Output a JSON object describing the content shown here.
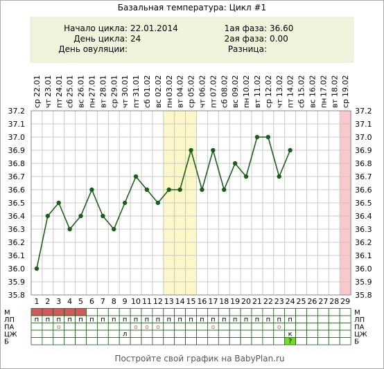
{
  "title": "Базальная температура: Цикл #1",
  "info": {
    "start_label": "Начало цикла:",
    "start_value": "22.01.2014",
    "day_label": "День цикла:",
    "day_value": "24",
    "ovulation_label": "День овуляции:",
    "ovulation_value": "",
    "phase1_label": "1ая фаза:",
    "phase1_value": "36.60",
    "phase2_label": "2ая фаза:",
    "phase2_value": "0.00",
    "diff_label": "Разница:",
    "diff_value": ""
  },
  "footer": "Постройте свой график на BabyPlan.ru",
  "colors": {
    "line": "#1b5e1b",
    "point": "#1b5e1b",
    "info_bg": "#eef5dc",
    "highlight": "#fbf7c8",
    "today": "#f9c8cc",
    "m_bar": "#d05b5b",
    "circle": "#e06060",
    "b_cell": "#77dd22"
  },
  "chart_data": {
    "type": "line",
    "title": "Базальная температура: Цикл #1",
    "days": [
      1,
      2,
      3,
      4,
      5,
      6,
      7,
      8,
      9,
      10,
      11,
      12,
      13,
      14,
      15,
      16,
      17,
      18,
      19,
      20,
      21,
      22,
      23,
      24,
      25,
      26,
      27,
      28,
      29
    ],
    "dates": [
      "22.01",
      "23.01",
      "24.01",
      "25.01",
      "26.01",
      "27.01",
      "28.01",
      "29.01",
      "30.01",
      "31.01",
      "01.02",
      "02.02",
      "03.02",
      "04.02",
      "05.02",
      "06.02",
      "07.02",
      "08.02",
      "09.02",
      "10.02",
      "11.02",
      "12.02",
      "13.02",
      "14.02",
      "15.02",
      "16.02",
      "17.02",
      "18.02",
      "19.02"
    ],
    "weekdays": [
      "ср",
      "чт",
      "пт",
      "сб",
      "вс",
      "пн",
      "вт",
      "ср",
      "чт",
      "пт",
      "сб",
      "вс",
      "пн",
      "вт",
      "ср",
      "чт",
      "пт",
      "сб",
      "вс",
      "пн",
      "вт",
      "ср",
      "чт",
      "пт",
      "сб",
      "вс",
      "пн",
      "вт",
      "ср"
    ],
    "y_ticks": [
      "37.2",
      "37.1",
      "37.0",
      "36.9",
      "36.8",
      "36.7",
      "36.6",
      "36.5",
      "36.4",
      "36.3",
      "36.2",
      "36.1",
      "36.0",
      "35.9",
      "35.8"
    ],
    "ylim": [
      35.8,
      37.2
    ],
    "series": [
      {
        "values": [
          36.0,
          36.4,
          36.5,
          36.3,
          36.4,
          36.6,
          36.4,
          36.3,
          36.5,
          36.7,
          36.6,
          36.5,
          36.6,
          36.6,
          36.9,
          36.6,
          36.9,
          36.6,
          36.8,
          36.7,
          37.0,
          37.0,
          36.7,
          36.9,
          null,
          null,
          null,
          null,
          null
        ]
      }
    ],
    "highlight_days": [
      13,
      14,
      15
    ],
    "today_day": 29,
    "grid": true,
    "rows": {
      "labels": [
        "М",
        "ЛП",
        "ПА",
        "ЦЖ",
        "Б"
      ],
      "m_days": [
        1,
        2,
        3,
        4,
        5
      ],
      "lp": [
        "п",
        "п",
        "п",
        "п",
        "п",
        "п",
        "п",
        "п",
        "п",
        "п",
        "п",
        "п",
        "п",
        "п",
        "п",
        "п",
        "п",
        "п",
        "п",
        "п",
        "п",
        "п",
        "п",
        "п",
        "",
        "",
        "",
        "",
        ""
      ],
      "pa": [
        "",
        "",
        "о",
        "",
        "",
        "",
        "",
        "",
        "",
        "о",
        "о",
        "о",
        "",
        "",
        "",
        "",
        "о",
        "",
        "",
        "",
        "",
        "",
        "о",
        "",
        "",
        "",
        "",
        "",
        ""
      ],
      "cj": [
        "",
        "",
        "",
        "",
        "",
        "",
        "",
        "",
        "л",
        "",
        "",
        "",
        "",
        "",
        "",
        "",
        "",
        "",
        "",
        "",
        "",
        "",
        "",
        "к",
        "",
        "",
        "",
        "",
        ""
      ],
      "b": [
        "",
        "",
        "",
        "",
        "",
        "",
        "",
        "",
        "",
        "",
        "",
        "",
        "",
        "",
        "",
        "",
        "",
        "",
        "",
        "",
        "",
        "",
        "",
        "?",
        "",
        "",
        "",
        "",
        ""
      ]
    }
  }
}
